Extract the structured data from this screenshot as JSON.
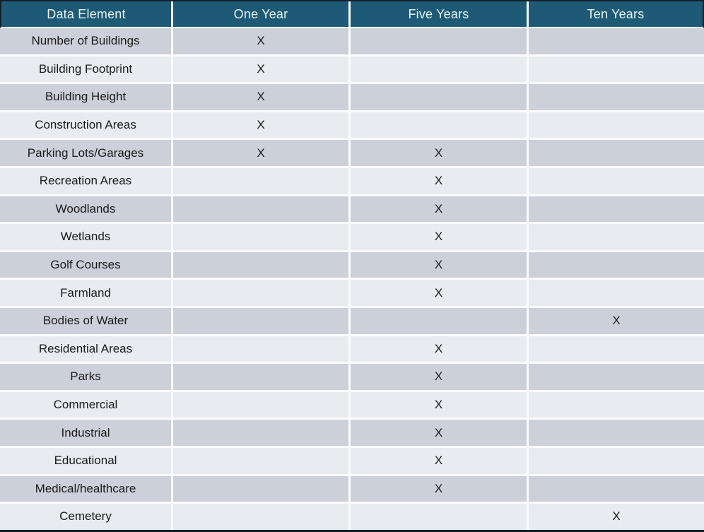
{
  "chart_data": {
    "type": "table",
    "columns": [
      "Data Element",
      "One Year",
      "Five Years",
      "Ten Years"
    ],
    "mark_symbol": "X",
    "rows": [
      {
        "label": "Number of Buildings",
        "cells": [
          "X",
          "",
          ""
        ]
      },
      {
        "label": "Building Footprint",
        "cells": [
          "X",
          "",
          ""
        ]
      },
      {
        "label": "Building Height",
        "cells": [
          "X",
          "",
          ""
        ]
      },
      {
        "label": "Construction Areas",
        "cells": [
          "X",
          "",
          ""
        ]
      },
      {
        "label": "Parking  Lots/Garages",
        "cells": [
          "X",
          "X",
          ""
        ]
      },
      {
        "label": "Recreation Areas",
        "cells": [
          "",
          "X",
          ""
        ]
      },
      {
        "label": "Woodlands",
        "cells": [
          "",
          "X",
          ""
        ]
      },
      {
        "label": "Wetlands",
        "cells": [
          "",
          "X",
          ""
        ]
      },
      {
        "label": "Golf Courses",
        "cells": [
          "",
          "X",
          ""
        ]
      },
      {
        "label": "Farmland",
        "cells": [
          "",
          "X",
          ""
        ]
      },
      {
        "label": "Bodies of Water",
        "cells": [
          "",
          "",
          "X"
        ]
      },
      {
        "label": "Residential Areas",
        "cells": [
          "",
          "X",
          ""
        ]
      },
      {
        "label": "Parks",
        "cells": [
          "",
          "X",
          ""
        ]
      },
      {
        "label": "Commercial",
        "cells": [
          "",
          "X",
          ""
        ]
      },
      {
        "label": "Industrial",
        "cells": [
          "",
          "X",
          ""
        ]
      },
      {
        "label": "Educational",
        "cells": [
          "",
          "X",
          ""
        ]
      },
      {
        "label": "Medical/healthcare",
        "cells": [
          "",
          "X",
          ""
        ]
      },
      {
        "label": "Cemetery",
        "cells": [
          "",
          "",
          "X"
        ]
      }
    ],
    "colors": {
      "header_bg": "#1e5a76",
      "header_text": "#e9f4f1",
      "row_dark": "#ccd1d9",
      "row_light": "#e8ebf0",
      "separator": "#fafbfc",
      "outer_border": "#10202b",
      "text": "#1a1a1a"
    }
  }
}
